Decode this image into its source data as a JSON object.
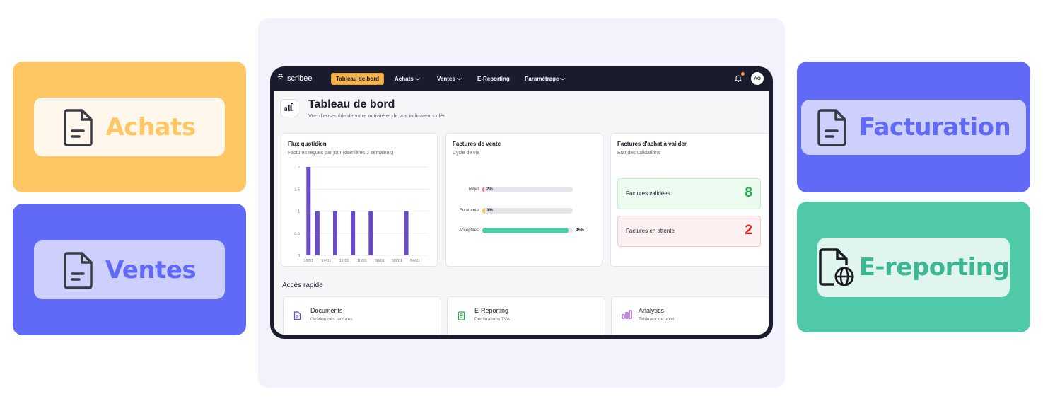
{
  "colors": {
    "achats_bg": "#ffc764",
    "achats_text": "#ffc764",
    "ventes_bg": "#6169f7",
    "ventes_text": "#6169f7",
    "facturation_bg": "#6169f7",
    "facturation_text": "#6169f7",
    "ereporting_bg": "#4fc9a8",
    "ereporting_text": "#3bb893",
    "accent_orange": "#f7b24a",
    "bar_purple": "#6a4ac9",
    "green": "#1eaa45",
    "red": "#e32020"
  },
  "side_cards": {
    "achats": {
      "label": "Achats",
      "icon": "document-icon"
    },
    "ventes": {
      "label": "Ventes",
      "icon": "document-icon"
    },
    "facturation": {
      "label": "Facturation",
      "icon": "document-icon"
    },
    "ereporting": {
      "label": "E-reporting",
      "icon": "document-globe-icon"
    }
  },
  "app": {
    "logo": "scribee",
    "nav": [
      {
        "label": "Tableau de bord",
        "active": true
      },
      {
        "label": "Achats",
        "dropdown": true
      },
      {
        "label": "Ventes",
        "dropdown": true
      },
      {
        "label": "E-Reporting"
      },
      {
        "label": "Paramétrage",
        "dropdown": true
      }
    ],
    "avatar": "AO"
  },
  "page": {
    "title": "Tableau de bord",
    "subtitle": "Vue d'ensemble de votre activité et de vos indicateurs clés"
  },
  "flux": {
    "title": "Flux quotidien",
    "subtitle": "Factures reçues par jour (dernières 2 semaines)"
  },
  "chart_data": {
    "type": "bar",
    "title": "Flux quotidien",
    "xlabel": "",
    "ylabel": "",
    "ylim": [
      0,
      2
    ],
    "y_ticks": [
      "0",
      "0.5",
      "1",
      "1.5",
      "2"
    ],
    "x_tick_labels": [
      "16/01",
      "14/01",
      "12/01",
      "10/01",
      "08/01",
      "06/01",
      "04/01"
    ],
    "values": [
      2,
      1,
      0,
      1,
      0,
      1,
      0,
      1,
      0,
      0,
      0,
      1,
      0,
      0
    ],
    "grid": true
  },
  "ventes_panel": {
    "title": "Factures de vente",
    "subtitle": "Cycle de vie",
    "rows": [
      {
        "label": "Rejet",
        "pct": "2%",
        "value": 2,
        "color": "#f07070"
      },
      {
        "label": "En attente",
        "pct": "3%",
        "value": 3,
        "color": "#f7c64a"
      },
      {
        "label": "Acceptées",
        "pct": "95%",
        "value": 95,
        "color": "#4fc9a8"
      }
    ]
  },
  "achat_panel": {
    "title": "Factures d'achat à valider",
    "subtitle": "État des validations",
    "validated_label": "Factures validées",
    "validated_value": "8",
    "pending_label": "Factures en attente",
    "pending_value": "2"
  },
  "quick": {
    "title": "Accès rapide",
    "items": [
      {
        "title": "Documents",
        "sub": "Gestion des factures",
        "icon": "document-icon"
      },
      {
        "title": "E-Reporting",
        "sub": "Déclarations TVA",
        "icon": "spreadsheet-icon"
      },
      {
        "title": "Analytics",
        "sub": "Tableaux de bord",
        "icon": "bar-chart-icon"
      }
    ]
  }
}
